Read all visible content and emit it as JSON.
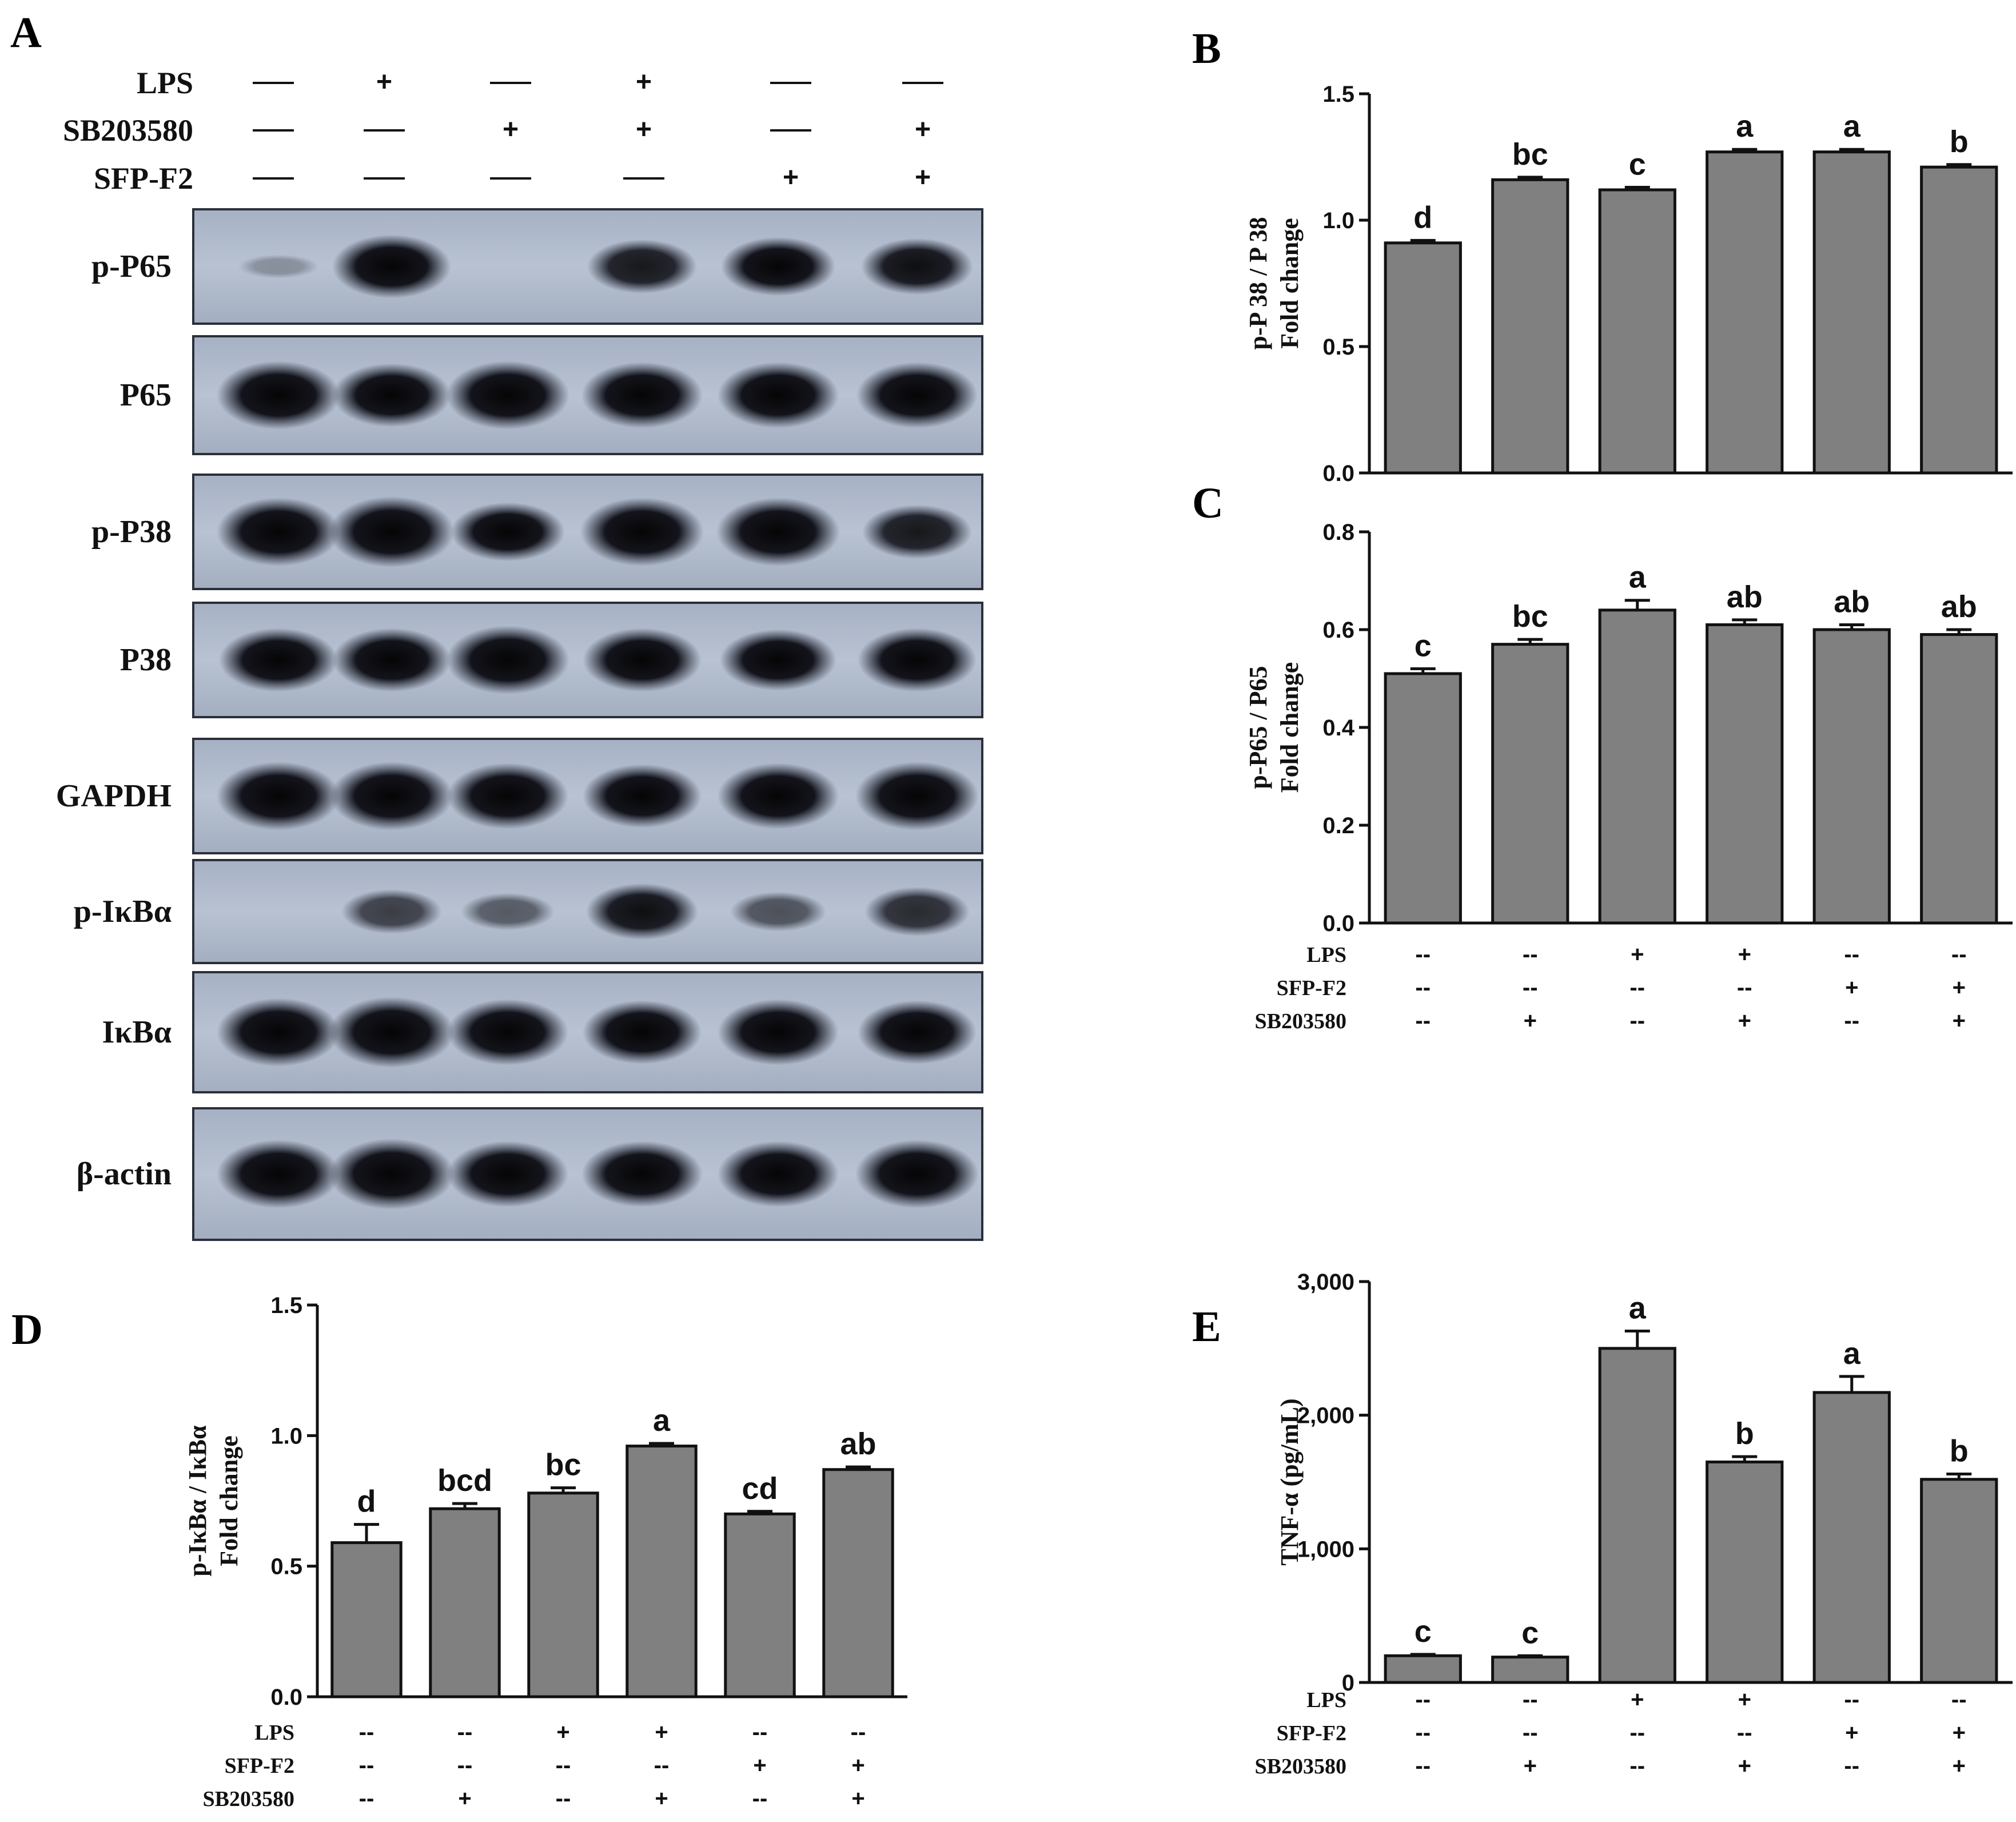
{
  "western_blot": {
    "panel_letter": "A",
    "conditions": [
      {
        "label": "LPS",
        "values": [
          "—",
          "+",
          "—",
          "+",
          "—",
          "—"
        ]
      },
      {
        "label": "SB203580",
        "values": [
          "—",
          "—",
          "+",
          "+",
          "—",
          "+"
        ]
      },
      {
        "label": "SFP-F2",
        "values": [
          "—",
          "—",
          "—",
          "—",
          "+",
          "+"
        ]
      }
    ],
    "blots": [
      {
        "label": "p-P65",
        "intensity": [
          0.02,
          0.85,
          0.0,
          0.65,
          0.75,
          0.7
        ]
      },
      {
        "label": "P65",
        "intensity": [
          0.95,
          0.85,
          0.95,
          0.9,
          0.9,
          0.9
        ]
      },
      {
        "label": "p-P38",
        "intensity": [
          0.95,
          1.0,
          0.75,
          0.95,
          0.95,
          0.65
        ]
      },
      {
        "label": "P38",
        "intensity": [
          0.85,
          0.85,
          0.95,
          0.85,
          0.8,
          0.85
        ]
      },
      {
        "label": "GAPDH",
        "intensity": [
          0.95,
          0.95,
          0.9,
          0.85,
          0.9,
          0.95
        ]
      },
      {
        "label": "p-IκBα",
        "intensity": [
          0.0,
          0.45,
          0.3,
          0.7,
          0.35,
          0.55
        ]
      },
      {
        "label": "IκBα",
        "intensity": [
          0.95,
          1.0,
          0.9,
          0.85,
          0.9,
          0.85
        ]
      },
      {
        "label": "β-actin",
        "intensity": [
          0.95,
          1.0,
          0.9,
          0.9,
          0.9,
          0.95
        ]
      }
    ]
  },
  "chart_data": [
    {
      "panel": "B",
      "type": "bar",
      "ylabel": [
        "p-P 38 / P 38",
        "Fold change"
      ],
      "ylim": [
        0,
        1.5
      ],
      "yticks": [
        0.0,
        0.5,
        1.0,
        1.5
      ],
      "ytick_labels": [
        "0.0",
        "0.5",
        "1.0",
        "1.5"
      ],
      "values": [
        0.91,
        1.16,
        1.12,
        1.27,
        1.27,
        1.21
      ],
      "errors": [
        0.01,
        0.01,
        0.01,
        0.01,
        0.01,
        0.01
      ],
      "significance": [
        "d",
        "bc",
        "c",
        "a",
        "a",
        "b"
      ],
      "bar_color": "#808080",
      "condition_rows": []
    },
    {
      "panel": "C",
      "type": "bar",
      "ylabel": [
        "p-P65 / P65",
        "Fold change"
      ],
      "ylim": [
        0,
        0.8
      ],
      "yticks": [
        0.0,
        0.2,
        0.4,
        0.6,
        0.8
      ],
      "ytick_labels": [
        "0.0",
        "0.2",
        "0.4",
        "0.6",
        "0.8"
      ],
      "values": [
        0.51,
        0.57,
        0.64,
        0.61,
        0.6,
        0.59
      ],
      "errors": [
        0.01,
        0.01,
        0.02,
        0.01,
        0.01,
        0.01
      ],
      "significance": [
        "c",
        "bc",
        "a",
        "ab",
        "ab",
        "ab"
      ],
      "bar_color": "#808080",
      "condition_rows": [
        {
          "label": "LPS",
          "values": [
            "--",
            "--",
            "+",
            "+",
            "--",
            "--"
          ]
        },
        {
          "label": "SFP-F2",
          "values": [
            "--",
            "--",
            "--",
            "--",
            "+",
            "+"
          ]
        },
        {
          "label": "SB203580",
          "values": [
            "--",
            "+",
            "--",
            "+",
            "--",
            "+"
          ]
        }
      ]
    },
    {
      "panel": "D",
      "type": "bar",
      "ylabel": [
        "p-IκBα / IκBα",
        "Fold change"
      ],
      "ylim": [
        0,
        1.5
      ],
      "yticks": [
        0.0,
        0.5,
        1.0,
        1.5
      ],
      "ytick_labels": [
        "0.0",
        "0.5",
        "1.0",
        "1.5"
      ],
      "values": [
        0.59,
        0.72,
        0.78,
        0.96,
        0.7,
        0.87
      ],
      "errors": [
        0.07,
        0.02,
        0.02,
        0.01,
        0.01,
        0.01
      ],
      "significance": [
        "d",
        "bcd",
        "bc",
        "a",
        "cd",
        "ab"
      ],
      "bar_color": "#808080",
      "condition_rows": [
        {
          "label": "LPS",
          "values": [
            "--",
            "--",
            "+",
            "+",
            "--",
            "--"
          ]
        },
        {
          "label": "SFP-F2",
          "values": [
            "--",
            "--",
            "--",
            "--",
            "+",
            "+"
          ]
        },
        {
          "label": "SB203580",
          "values": [
            "--",
            "+",
            "--",
            "+",
            "--",
            "+"
          ]
        }
      ]
    },
    {
      "panel": "E",
      "type": "bar",
      "ylabel": [
        "TNF-α (pg/mL)"
      ],
      "ylim": [
        0,
        3000
      ],
      "yticks": [
        0,
        1000,
        2000,
        3000
      ],
      "ytick_labels": [
        "0",
        "1,000",
        "2,000",
        "3,000"
      ],
      "values": [
        200,
        190,
        2500,
        1650,
        2170,
        1520
      ],
      "errors": [
        10,
        10,
        130,
        40,
        120,
        40
      ],
      "significance": [
        "c",
        "c",
        "a",
        "b",
        "a",
        "b"
      ],
      "bar_color": "#808080",
      "condition_rows": [
        {
          "label": "LPS",
          "values": [
            "--",
            "--",
            "+",
            "+",
            "--",
            "--"
          ]
        },
        {
          "label": "SFP-F2",
          "values": [
            "--",
            "--",
            "--",
            "--",
            "+",
            "+"
          ]
        },
        {
          "label": "SB203580",
          "values": [
            "--",
            "+",
            "--",
            "+",
            "--",
            "+"
          ]
        }
      ]
    }
  ]
}
